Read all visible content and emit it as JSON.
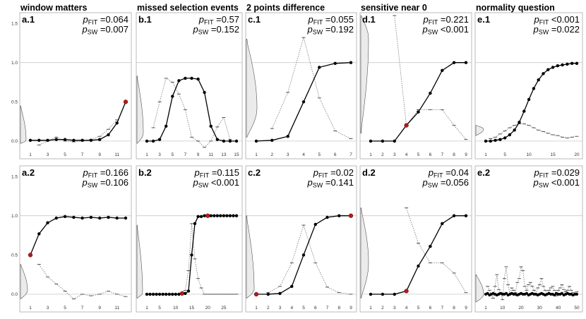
{
  "columns": [
    {
      "title": "window matters"
    },
    {
      "title": "missed selection events"
    },
    {
      "title": "2 points difference"
    },
    {
      "title": "sensitive near 0"
    },
    {
      "title": "normality question"
    }
  ],
  "y_axis_ticks": [
    "0.0",
    "0.5",
    "1.0",
    "1.5"
  ],
  "colors": {
    "line": "#000000",
    "highlight_point": "#b01c1c",
    "density_fill": "#ebebeb",
    "density_stroke": "#555555",
    "dotted": "#777777",
    "gridline": "#c8c8c8",
    "panel_border": "#aaaaaa"
  },
  "chart_data": [
    {
      "id": "a.1",
      "type": "line",
      "p_fit": "=0.064",
      "p_sw": "=0.007",
      "ylim": [
        -0.1,
        1.6
      ],
      "x_ticks": [
        "1",
        "3",
        "5",
        "7",
        "9",
        "11"
      ],
      "x": [
        1,
        2,
        3,
        4,
        5,
        6,
        7,
        8,
        9,
        10,
        11,
        12
      ],
      "values": [
        0.01,
        0.01,
        0.01,
        0.02,
        0.02,
        0.01,
        0.01,
        0.01,
        0.02,
        0.08,
        0.23,
        0.5
      ],
      "highlight": [
        12
      ],
      "dotted": [
        null,
        -0.05,
        0.0,
        0.05,
        0.0,
        -0.01,
        0.0,
        0.02,
        0.06,
        0.15,
        0.27,
        null
      ],
      "density": {
        "y0": -0.03,
        "y1": 0.45,
        "peak": 0.01,
        "w": 8
      }
    },
    {
      "id": "b.1",
      "type": "line",
      "p_fit": "=0.57",
      "p_sw": "=0.152",
      "ylim": [
        -0.1,
        1.6
      ],
      "x_ticks": [
        "1",
        "3",
        "5",
        "7",
        "9",
        "11",
        "13",
        "15"
      ],
      "x": [
        1,
        2,
        3,
        4,
        5,
        6,
        7,
        8,
        9,
        10,
        11,
        12,
        13,
        14,
        15
      ],
      "values": [
        0.0,
        0.0,
        0.02,
        0.19,
        0.57,
        0.77,
        0.8,
        0.8,
        0.79,
        0.62,
        0.19,
        0.02,
        0.0,
        0.0,
        0.0
      ],
      "highlight": [],
      "dotted": [
        null,
        0.17,
        0.5,
        0.8,
        0.75,
        0.6,
        0.4,
        0.05,
        0.0,
        -0.08,
        0.0,
        0.18,
        0.3,
        0.02,
        null
      ],
      "density": {
        "y0": -0.03,
        "y1": 0.83,
        "peak": 0.1,
        "w": 9
      }
    },
    {
      "id": "c.1",
      "type": "line",
      "p_fit": "=0.055",
      "p_sw": "=0.192",
      "ylim": [
        -0.1,
        1.6
      ],
      "x_ticks": [
        "1",
        "2",
        "3",
        "4",
        "5",
        "6",
        "7"
      ],
      "x": [
        1,
        2,
        3,
        4,
        5,
        6,
        7
      ],
      "values": [
        0.0,
        0.01,
        0.06,
        0.5,
        0.94,
        0.99,
        1.0
      ],
      "highlight": [],
      "dotted": [
        null,
        0.16,
        0.62,
        1.32,
        0.55,
        0.13,
        0.03
      ],
      "density": {
        "y0": 0.05,
        "y1": 1.3,
        "peak": 0.42,
        "w": 15
      }
    },
    {
      "id": "d.1",
      "type": "line",
      "p_fit": "=0.221",
      "p_sw": "<0.001",
      "ylim": [
        -0.1,
        1.6
      ],
      "x_ticks": [
        "1",
        "2",
        "3",
        "4",
        "5",
        "6",
        "7",
        "8",
        "9"
      ],
      "x": [
        1,
        2,
        3,
        4,
        5,
        6,
        7,
        8,
        9
      ],
      "values": [
        0.0,
        0.0,
        0.0,
        0.2,
        0.37,
        0.61,
        0.9,
        1.0,
        1.0
      ],
      "highlight": [
        4
      ],
      "dotted": [
        null,
        null,
        1.6,
        0.2,
        0.4,
        0.4,
        0.4,
        0.2,
        0.02
      ],
      "density": {
        "y0": 0.1,
        "y1": 1.6,
        "peak": 1.3,
        "w": 11
      }
    },
    {
      "id": "e.1",
      "type": "line",
      "p_fit": "<0.001",
      "p_sw": "=0.022",
      "ylim": [
        -0.1,
        1.6
      ],
      "x_ticks": [
        "1",
        "5",
        "10",
        "15",
        "20"
      ],
      "x": [
        1,
        2,
        3,
        4,
        5,
        6,
        7,
        8,
        9,
        10,
        11,
        12,
        13,
        14,
        15,
        16,
        17,
        18,
        19,
        20
      ],
      "values": [
        0.0,
        0.0,
        0.01,
        0.02,
        0.04,
        0.08,
        0.14,
        0.24,
        0.38,
        0.53,
        0.67,
        0.78,
        0.86,
        0.91,
        0.94,
        0.96,
        0.97,
        0.98,
        0.99,
        0.99
      ],
      "highlight": [],
      "dotted": [
        null,
        0.03,
        0.05,
        0.09,
        0.13,
        0.17,
        0.2,
        0.22,
        0.22,
        0.2,
        0.17,
        0.14,
        0.12,
        0.1,
        0.08,
        0.07,
        0.05,
        0.04,
        0.05,
        0.06
      ],
      "density": {
        "y0": 0.07,
        "y1": 0.2,
        "peak": 0.15,
        "w": 11
      }
    },
    {
      "id": "a.2",
      "type": "line",
      "p_fit": "=0.166",
      "p_sw": "=0.106",
      "ylim": [
        -0.1,
        1.6
      ],
      "x_ticks": [
        "1",
        "3",
        "5",
        "7",
        "9",
        "11"
      ],
      "x": [
        1,
        2,
        3,
        4,
        5,
        6,
        7,
        8,
        9,
        10,
        11,
        12
      ],
      "values": [
        0.5,
        0.77,
        0.91,
        0.97,
        0.99,
        0.98,
        0.97,
        0.98,
        0.97,
        0.98,
        0.97,
        0.97
      ],
      "highlight": [
        1
      ],
      "dotted": [
        null,
        0.38,
        0.22,
        0.13,
        0.04,
        -0.06,
        0.0,
        -0.02,
        0.0,
        0.04,
        0.0,
        -0.03
      ],
      "density": {
        "y0": -0.06,
        "y1": 0.38,
        "peak": 0.05,
        "w": 10
      }
    },
    {
      "id": "b.2",
      "type": "line",
      "p_fit": "=0.115",
      "p_sw": "<0.001",
      "ylim": [
        -0.1,
        1.6
      ],
      "x_ticks": [
        "1",
        "5",
        "10",
        "15",
        "20",
        "25"
      ],
      "x": [
        1,
        2,
        3,
        4,
        5,
        6,
        7,
        8,
        9,
        10,
        11,
        12,
        13,
        14,
        15,
        16,
        17,
        18,
        19,
        20,
        21,
        22,
        23,
        24,
        25,
        26,
        27,
        28,
        29
      ],
      "values": [
        0,
        0,
        0,
        0,
        0,
        0,
        0,
        0,
        0,
        0,
        0,
        0.01,
        0.01,
        0.04,
        0.5,
        0.9,
        0.99,
        0.99,
        1.0,
        1.0,
        1.0,
        1.0,
        1.0,
        1.0,
        1.0,
        1.0,
        1.0,
        1.0,
        1.0
      ],
      "highlight": [
        12,
        20
      ],
      "dotted": [
        null,
        0,
        0,
        0,
        0,
        0,
        0,
        0,
        0,
        0,
        0,
        0.02,
        0.05,
        0.3,
        0.9,
        0.45,
        0.2,
        0.08,
        0,
        0,
        0,
        0,
        0,
        0,
        0,
        0,
        0,
        0,
        0
      ],
      "density": {
        "y0": -0.05,
        "y1": 0.88,
        "peak": 0.02,
        "w": 8
      }
    },
    {
      "id": "c.2",
      "type": "line",
      "p_fit": "=0.02",
      "p_sw": "=0.141",
      "ylim": [
        -0.1,
        1.6
      ],
      "x_ticks": [
        "1",
        "2",
        "3",
        "4",
        "5",
        "6",
        "7",
        "8",
        "9"
      ],
      "x": [
        1,
        2,
        3,
        4,
        5,
        6,
        7,
        8,
        9
      ],
      "values": [
        0.0,
        0.0,
        0.01,
        0.1,
        0.5,
        0.89,
        0.98,
        1.0,
        1.0
      ],
      "highlight": [
        1,
        9
      ],
      "dotted": [
        null,
        0.02,
        0.1,
        0.4,
        0.88,
        0.4,
        0.09,
        0.02,
        0.0
      ],
      "density": {
        "y0": -0.05,
        "y1": 1.0,
        "peak": 0.06,
        "w": 11
      }
    },
    {
      "id": "d.2",
      "type": "line",
      "p_fit": "=0.04",
      "p_sw": "=0.056",
      "ylim": [
        -0.1,
        1.6
      ],
      "x_ticks": [
        "1",
        "2",
        "3",
        "4",
        "5",
        "6",
        "7",
        "8",
        "9"
      ],
      "x": [
        1,
        2,
        3,
        4,
        5,
        6,
        7,
        8,
        9
      ],
      "values": [
        0.0,
        0.0,
        0.0,
        0.04,
        0.36,
        0.61,
        0.9,
        1.0,
        1.0
      ],
      "highlight": [
        4
      ],
      "dotted": [
        null,
        null,
        null,
        1.1,
        0.65,
        0.4,
        0.4,
        0.27,
        0.02
      ],
      "density": {
        "y0": -0.05,
        "y1": 1.1,
        "peak": 0.4,
        "w": 11
      }
    },
    {
      "id": "e.2",
      "type": "line",
      "p_fit": "=0.029",
      "p_sw": "<0.001",
      "ylim": [
        -0.1,
        1.6
      ],
      "x_ticks": [
        "1",
        "10",
        "20",
        "30",
        "40",
        "50"
      ],
      "x": [
        1,
        2,
        3,
        4,
        5,
        6,
        7,
        8,
        9,
        10,
        11,
        12,
        13,
        14,
        15,
        16,
        17,
        18,
        19,
        20,
        21,
        22,
        23,
        24,
        25,
        26,
        27,
        28,
        29,
        30,
        31,
        32,
        33,
        34,
        35,
        36,
        37,
        38,
        39,
        40,
        41,
        42,
        43,
        44,
        45,
        46,
        47,
        48,
        49,
        50
      ],
      "values": [
        0.0,
        0.01,
        -0.01,
        0.0,
        0.01,
        0.0,
        -0.01,
        0.0,
        0.01,
        0.0,
        0.0,
        0.01,
        -0.01,
        0.0,
        0.01,
        0.0,
        0.0,
        -0.01,
        0.0,
        0.01,
        0.0,
        0.0,
        0.01,
        -0.01,
        0.0,
        0.01,
        0.0,
        0.0,
        -0.01,
        0.0,
        0.01,
        0.0,
        -0.01,
        0.0,
        0.01,
        0.0,
        0.0,
        -0.01,
        0.01,
        0.0,
        0.0,
        0.01,
        -0.01,
        0.0,
        0.01,
        0.0,
        0.0,
        -0.01,
        0.0,
        0.0
      ],
      "highlight": [],
      "dotted": [
        null,
        0.1,
        0.05,
        0.0,
        -0.05,
        0.1,
        0.25,
        0.06,
        0.02,
        -0.07,
        0.2,
        0.35,
        0.12,
        0.0,
        0.08,
        0.05,
        0.02,
        0.15,
        0.2,
        0.35,
        0.3,
        0.1,
        0.05,
        0.12,
        0.15,
        0.1,
        0.05,
        0.0,
        0.08,
        0.12,
        0.2,
        0.1,
        0.05,
        0.0,
        0.05,
        0.08,
        0.1,
        0.05,
        -0.02,
        0.05,
        0.08,
        0.12,
        0.06,
        0.03,
        0.05,
        0.1,
        0.05,
        0.02,
        0.0,
        0.03
      ],
      "density": {
        "y0": -0.1,
        "y1": 0.25,
        "peak": 0.0,
        "w": 11
      }
    }
  ]
}
